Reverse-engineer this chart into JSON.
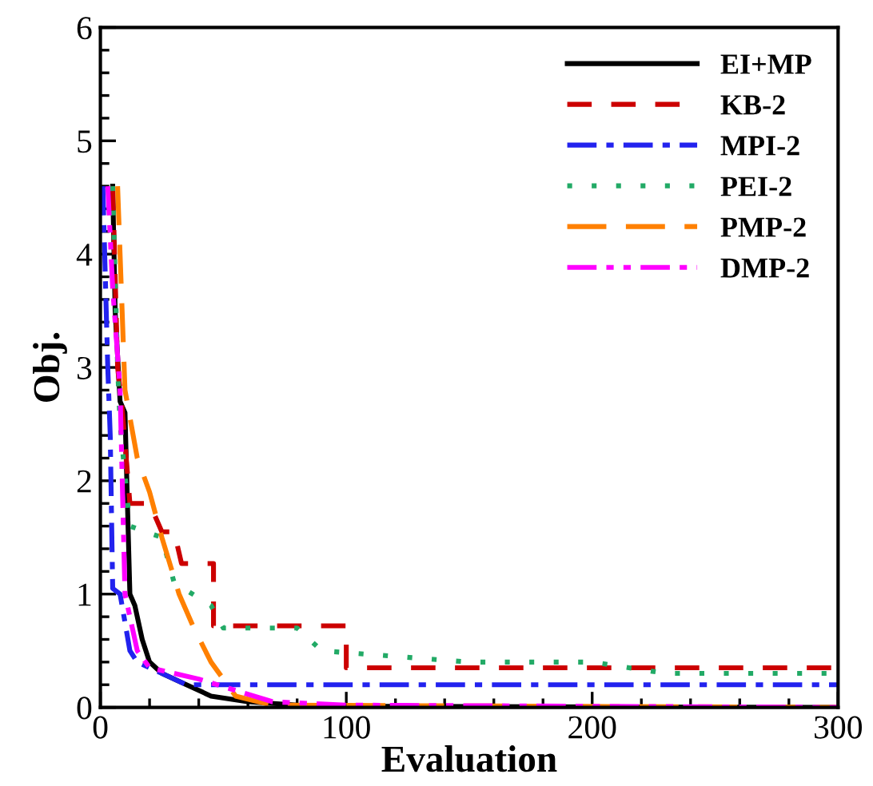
{
  "chart_data": {
    "type": "line",
    "xlabel": "Evaluation",
    "ylabel": "Obj.",
    "xlim": [
      0,
      300
    ],
    "ylim": [
      0,
      6
    ],
    "xticks": [
      0,
      100,
      200,
      300
    ],
    "yticks": [
      0,
      1,
      2,
      3,
      4,
      5,
      6
    ],
    "grid": false,
    "legend": "top right",
    "series": [
      {
        "name": "EI+MP",
        "color": "#000000",
        "line_style": "solid",
        "x": [
          5,
          6,
          8,
          10,
          12,
          14,
          17,
          20,
          25,
          35,
          45,
          60,
          80,
          100,
          300
        ],
        "values": [
          4.6,
          3.5,
          2.7,
          2.6,
          1.0,
          0.9,
          0.6,
          0.4,
          0.3,
          0.2,
          0.1,
          0.05,
          0.02,
          0.01,
          0
        ]
      },
      {
        "name": "KB-2",
        "color": "#cc0000",
        "line_style": "dashed",
        "x": [
          5,
          7,
          9,
          12,
          20,
          25,
          30,
          33,
          46,
          46,
          100,
          100,
          300
        ],
        "values": [
          4.6,
          3.0,
          2.6,
          1.8,
          1.8,
          1.55,
          1.55,
          1.27,
          1.27,
          0.72,
          0.72,
          0.35,
          0.35
        ]
      },
      {
        "name": "MPI-2",
        "color": "#2222ee",
        "line_style": "dashdot",
        "x": [
          1,
          3,
          4,
          5,
          8,
          12,
          15,
          25,
          35,
          300
        ],
        "values": [
          4.6,
          3.0,
          2.4,
          1.05,
          1.0,
          0.5,
          0.4,
          0.3,
          0.2,
          0.2
        ]
      },
      {
        "name": "PEI-2",
        "color": "#22aa66",
        "line_style": "dotted",
        "x": [
          5,
          7,
          8,
          12,
          25,
          30,
          45,
          50,
          80,
          90,
          120,
          150,
          200,
          230,
          300
        ],
        "values": [
          4.6,
          3.0,
          2.5,
          1.6,
          1.5,
          1.1,
          0.9,
          0.7,
          0.7,
          0.5,
          0.45,
          0.4,
          0.4,
          0.3,
          0.3
        ]
      },
      {
        "name": "PMP-2",
        "color": "#ff8000",
        "line_style": "longdash",
        "x": [
          7,
          8,
          10,
          15,
          20,
          25,
          32,
          38,
          45,
          55,
          70,
          300
        ],
        "values": [
          4.6,
          4.0,
          2.8,
          2.2,
          1.9,
          1.5,
          1.0,
          0.7,
          0.4,
          0.1,
          0.02,
          0
        ]
      },
      {
        "name": "DMP-2",
        "color": "#ff00ff",
        "line_style": "dashdotdot",
        "x": [
          3,
          5,
          8,
          10,
          15,
          20,
          30,
          40,
          55,
          70,
          100,
          300
        ],
        "values": [
          4.6,
          3.7,
          2.8,
          1.0,
          0.5,
          0.35,
          0.3,
          0.25,
          0.15,
          0.05,
          0.02,
          0
        ]
      }
    ]
  }
}
